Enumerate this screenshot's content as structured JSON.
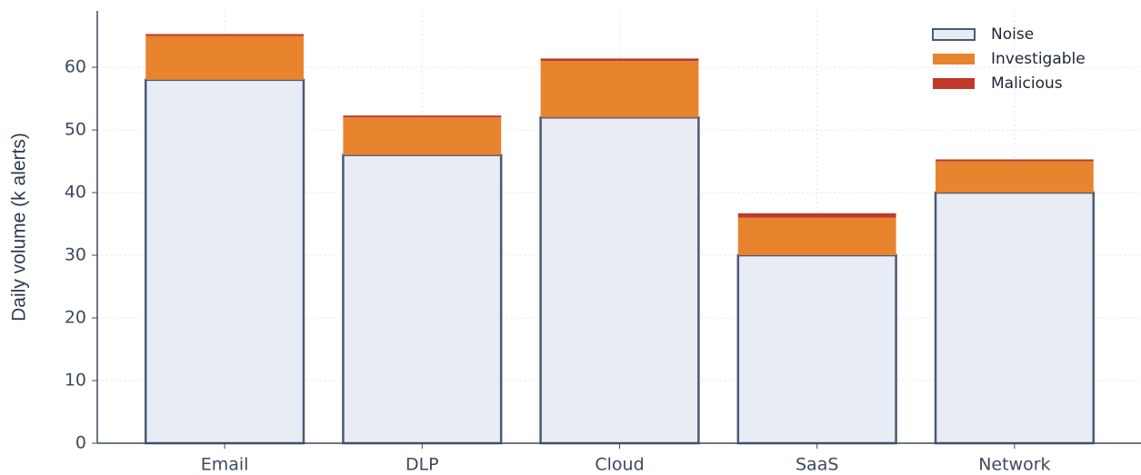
{
  "chart_data": {
    "type": "stacked_bar",
    "ylabel": "Daily volume (k alerts)",
    "categories": [
      "Email",
      "DLP",
      "Cloud",
      "SaaS",
      "Network"
    ],
    "series": [
      {
        "name": "Noise",
        "color": "#e8edf5",
        "edgecolor": "#4a5a73",
        "values": [
          58,
          46,
          52,
          30,
          40
        ]
      },
      {
        "name": "Investigable",
        "color": "#e8832e",
        "values": [
          7,
          6,
          9,
          6,
          5
        ]
      },
      {
        "name": "Malicious",
        "color": "#c0392b",
        "values": [
          0.3,
          0.3,
          0.4,
          0.7,
          0.3
        ]
      }
    ],
    "ylim": [
      0,
      69
    ],
    "yticks": [
      0,
      10,
      20,
      30,
      40,
      50,
      60
    ],
    "grid": true,
    "legend": "upper right"
  }
}
